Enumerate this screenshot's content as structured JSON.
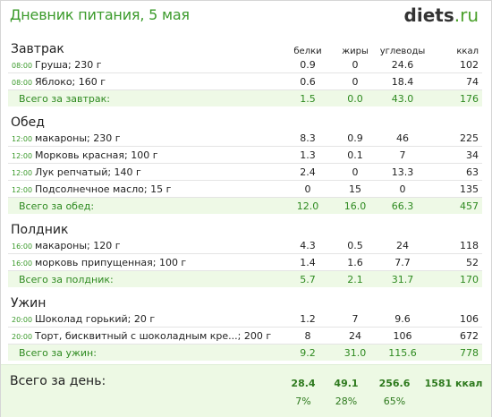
{
  "header": {
    "title": "Дневник питания, 5 мая",
    "logo_main": "diets",
    "logo_tld": ".ru"
  },
  "columns": {
    "protein": "белки",
    "fat": "жиры",
    "carbs": "углеводы",
    "kcal": "ккал"
  },
  "meals": [
    {
      "title": "Завтрак",
      "items": [
        {
          "time": "08:00",
          "name": "Груша; 230 г",
          "protein": "0.9",
          "fat": "0",
          "carbs": "24.6",
          "kcal": "102"
        },
        {
          "time": "08:00",
          "name": "Яблоко; 160 г",
          "protein": "0.6",
          "fat": "0",
          "carbs": "18.4",
          "kcal": "74"
        }
      ],
      "total": {
        "label": "Всего за завтрак:",
        "protein": "1.5",
        "fat": "0.0",
        "carbs": "43.0",
        "kcal": "176"
      }
    },
    {
      "title": "Обед",
      "items": [
        {
          "time": "12:00",
          "name": "макароны; 230 г",
          "protein": "8.3",
          "fat": "0.9",
          "carbs": "46",
          "kcal": "225"
        },
        {
          "time": "12:00",
          "name": "Морковь красная; 100 г",
          "protein": "1.3",
          "fat": "0.1",
          "carbs": "7",
          "kcal": "34"
        },
        {
          "time": "12:00",
          "name": "Лук репчатый; 140 г",
          "protein": "2.4",
          "fat": "0",
          "carbs": "13.3",
          "kcal": "63"
        },
        {
          "time": "12:00",
          "name": "Подсолнечное масло; 15 г",
          "protein": "0",
          "fat": "15",
          "carbs": "0",
          "kcal": "135"
        }
      ],
      "total": {
        "label": "Всего за обед:",
        "protein": "12.0",
        "fat": "16.0",
        "carbs": "66.3",
        "kcal": "457"
      }
    },
    {
      "title": "Полдник",
      "items": [
        {
          "time": "16:00",
          "name": "макароны; 120 г",
          "protein": "4.3",
          "fat": "0.5",
          "carbs": "24",
          "kcal": "118"
        },
        {
          "time": "16:00",
          "name": "морковь припущенная; 100 г",
          "protein": "1.4",
          "fat": "1.6",
          "carbs": "7.7",
          "kcal": "52"
        }
      ],
      "total": {
        "label": "Всего за полдник:",
        "protein": "5.7",
        "fat": "2.1",
        "carbs": "31.7",
        "kcal": "170"
      }
    },
    {
      "title": "Ужин",
      "items": [
        {
          "time": "20:00",
          "name": "Шоколад горький; 20 г",
          "protein": "1.2",
          "fat": "7",
          "carbs": "9.6",
          "kcal": "106"
        },
        {
          "time": "20:00",
          "name": "Торт, бисквитный с шоколадным кре...; 200 г",
          "protein": "8",
          "fat": "24",
          "carbs": "106",
          "kcal": "672"
        }
      ],
      "total": {
        "label": "Всего за ужин:",
        "protein": "9.2",
        "fat": "31.0",
        "carbs": "115.6",
        "kcal": "778"
      }
    }
  ],
  "day_total": {
    "label": "Всего за день:",
    "protein": "28.4",
    "fat": "49.1",
    "carbs": "256.6",
    "kcal": "1581 ккал",
    "protein_pct": "7%",
    "fat_pct": "28%",
    "carbs_pct": "65%"
  },
  "colors": {
    "accent": "#3a9a2a",
    "total_bg": "#eef9e6",
    "day_bg": "#edf9e4"
  }
}
